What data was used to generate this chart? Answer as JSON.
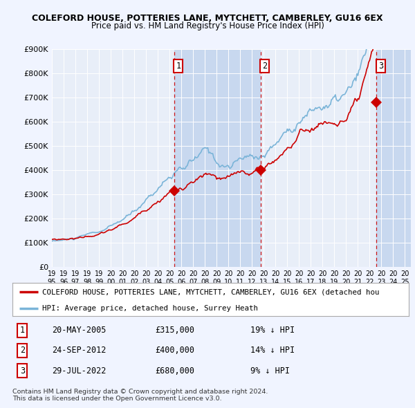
{
  "title1": "COLEFORD HOUSE, POTTERIES LANE, MYTCHETT, CAMBERLEY, GU16 6EX",
  "title2": "Price paid vs. HM Land Registry's House Price Index (HPI)",
  "background_color": "#f0f4ff",
  "plot_bg_color": "#e8eef8",
  "shade_color": "#c8d8ef",
  "ylim": [
    0,
    900000
  ],
  "xlim_start": 1995.0,
  "xlim_end": 2025.5,
  "ytick_vals": [
    0,
    100000,
    200000,
    300000,
    400000,
    500000,
    600000,
    700000,
    800000,
    900000
  ],
  "ytick_labels": [
    "£0",
    "£100K",
    "£200K",
    "£300K",
    "£400K",
    "£500K",
    "£600K",
    "£700K",
    "£800K",
    "£900K"
  ],
  "xticks": [
    1995,
    1996,
    1997,
    1998,
    1999,
    2000,
    2001,
    2002,
    2003,
    2004,
    2005,
    2006,
    2007,
    2008,
    2009,
    2010,
    2011,
    2012,
    2013,
    2014,
    2015,
    2016,
    2017,
    2018,
    2019,
    2020,
    2021,
    2022,
    2023,
    2024,
    2025
  ],
  "hpi_color": "#7ab4d8",
  "price_color": "#cc0000",
  "vline_color": "#cc0000",
  "transactions": [
    {
      "label": "1",
      "date": "20-MAY-2005",
      "x": 2005.38,
      "price": 315000,
      "pct": "19%",
      "dir": "↓"
    },
    {
      "label": "2",
      "date": "24-SEP-2012",
      "x": 2012.73,
      "price": 400000,
      "pct": "14%",
      "dir": "↓"
    },
    {
      "label": "3",
      "date": "29-JUL-2022",
      "x": 2022.57,
      "price": 680000,
      "pct": "9%",
      "dir": "↓"
    }
  ],
  "legend_line1": "COLEFORD HOUSE, POTTERIES LANE, MYTCHETT, CAMBERLEY, GU16 6EX (detached hou",
  "legend_line2": "HPI: Average price, detached house, Surrey Heath",
  "footnote1": "Contains HM Land Registry data © Crown copyright and database right 2024.",
  "footnote2": "This data is licensed under the Open Government Licence v3.0."
}
